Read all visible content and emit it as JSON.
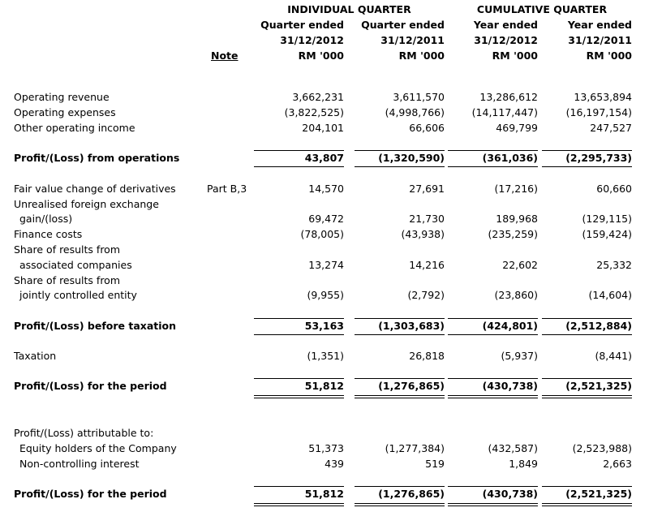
{
  "header": {
    "groups": [
      "INDIVIDUAL QUARTER",
      "CUMULATIVE QUARTER"
    ],
    "note": "Note",
    "columns": [
      {
        "period": "Quarter ended",
        "date": "31/12/2012",
        "unit": "RM '000"
      },
      {
        "period": "Quarter ended",
        "date": "31/12/2011",
        "unit": "RM '000"
      },
      {
        "period": "Year ended",
        "date": "31/12/2012",
        "unit": "RM '000"
      },
      {
        "period": "Year ended",
        "date": "31/12/2011",
        "unit": "RM '000"
      }
    ]
  },
  "table": {
    "rows": [
      {
        "label": "Operating revenue",
        "values": [
          "3,662,231",
          "3,611,570",
          "13,286,612",
          "13,653,894"
        ]
      },
      {
        "label": "Operating expenses",
        "values": [
          "(3,822,525)",
          "(4,998,766)",
          "(14,117,447)",
          "(16,197,154)"
        ]
      },
      {
        "label": "Other operating income",
        "values": [
          "204,101",
          "66,606",
          "469,799",
          "247,527"
        ]
      },
      {
        "label": "Profit/(Loss) from operations",
        "values": [
          "43,807",
          "(1,320,590)",
          "(361,036)",
          "(2,295,733)"
        ]
      },
      {
        "label": "Fair value change of derivatives",
        "note": "Part B,3",
        "values": [
          "14,570",
          "27,691",
          "(17,216)",
          "60,660"
        ]
      },
      {
        "label": "Unrealised foreign exchange"
      },
      {
        "label": "gain/(loss)",
        "values": [
          "69,472",
          "21,730",
          "189,968",
          "(129,115)"
        ]
      },
      {
        "label": "Finance costs",
        "values": [
          "(78,005)",
          "(43,938)",
          "(235,259)",
          "(159,424)"
        ]
      },
      {
        "label": "Share of results from"
      },
      {
        "label": "associated companies",
        "values": [
          "13,274",
          "14,216",
          "22,602",
          "25,332"
        ]
      },
      {
        "label": "Share of results from"
      },
      {
        "label": "jointly controlled entity",
        "values": [
          "(9,955)",
          "(2,792)",
          "(23,860)",
          "(14,604)"
        ]
      },
      {
        "label": "Profit/(Loss) before taxation",
        "values": [
          "53,163",
          "(1,303,683)",
          "(424,801)",
          "(2,512,884)"
        ]
      },
      {
        "label": "Taxation",
        "values": [
          "(1,351)",
          "26,818",
          "(5,937)",
          "(8,441)"
        ]
      },
      {
        "label": "Profit/(Loss) for the period",
        "values": [
          "51,812",
          "(1,276,865)",
          "(430,738)",
          "(2,521,325)"
        ]
      },
      {
        "label": "Profit/(Loss) attributable to:"
      },
      {
        "label": "Equity holders of the Company",
        "values": [
          "51,373",
          "(1,277,384)",
          "(432,587)",
          "(2,523,988)"
        ]
      },
      {
        "label": "Non-controlling interest",
        "values": [
          "439",
          "519",
          "1,849",
          "2,663"
        ]
      },
      {
        "label": "Profit/(Loss) for the period",
        "values": [
          "51,812",
          "(1,276,865)",
          "(430,738)",
          "(2,521,325)"
        ]
      }
    ]
  }
}
